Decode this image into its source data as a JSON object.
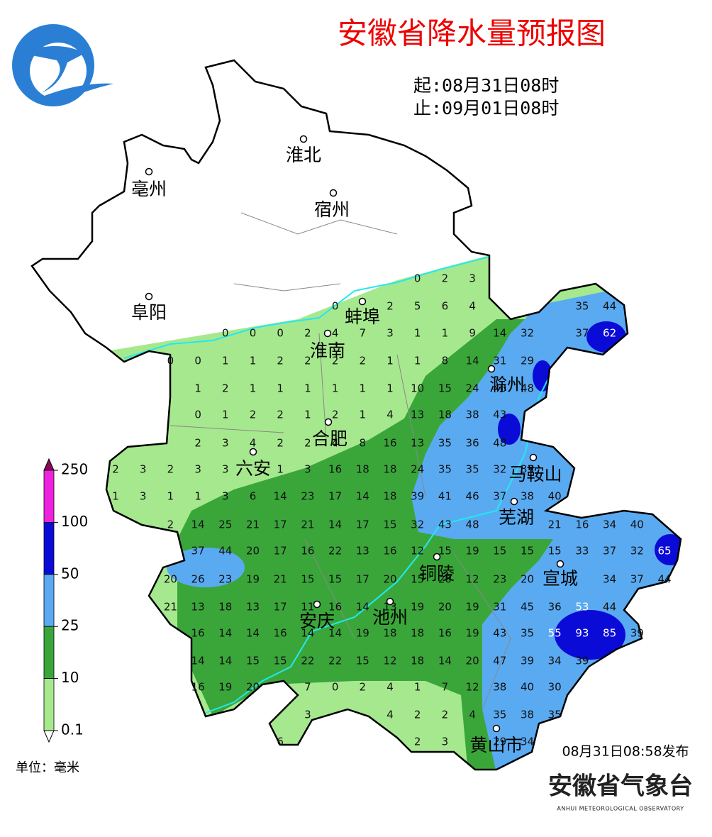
{
  "header": {
    "title": "安徽省降水量预报图",
    "start": "起:08月31日08时",
    "end": "止:09月01日08时"
  },
  "cities": [
    "淮北",
    "亳州",
    "宿州",
    "阜阳",
    "蚌埠",
    "淮南",
    "滁州",
    "合肥",
    "六安",
    "马鞍山",
    "芜湖",
    "铜陵",
    "宣城",
    "安庆",
    "池州",
    "黄山市"
  ],
  "grid": {
    "rows": [
      [
        null,
        null,
        null,
        null,
        null,
        null,
        null,
        null,
        null,
        null,
        null,
        0,
        2,
        3
      ],
      [
        null,
        null,
        null,
        null,
        null,
        null,
        null,
        null,
        0,
        null,
        2,
        5,
        6,
        4,
        null,
        null,
        null,
        35,
        44
      ],
      [
        null,
        null,
        null,
        null,
        0,
        0,
        0,
        2,
        4,
        7,
        3,
        1,
        1,
        9,
        14,
        32,
        null,
        37,
        62
      ],
      [
        null,
        null,
        0,
        0,
        1,
        1,
        2,
        2,
        2,
        2,
        1,
        1,
        8,
        14,
        31,
        29
      ],
      [
        null,
        null,
        null,
        1,
        2,
        1,
        1,
        1,
        1,
        1,
        1,
        10,
        15,
        24,
        40,
        48
      ],
      [
        null,
        null,
        null,
        0,
        1,
        2,
        2,
        1,
        2,
        1,
        4,
        13,
        18,
        38,
        43
      ],
      [
        null,
        null,
        null,
        2,
        3,
        4,
        2,
        2,
        4,
        8,
        16,
        13,
        35,
        36,
        48
      ],
      [
        2,
        3,
        2,
        3,
        3,
        null,
        1,
        3,
        16,
        18,
        18,
        24,
        35,
        35,
        32,
        33
      ],
      [
        1,
        3,
        1,
        1,
        3,
        6,
        14,
        23,
        17,
        14,
        18,
        39,
        41,
        46,
        37,
        38,
        40
      ],
      [
        null,
        null,
        2,
        14,
        25,
        21,
        17,
        21,
        14,
        17,
        15,
        32,
        43,
        48,
        null,
        null,
        21,
        16,
        34,
        40
      ],
      [
        null,
        null,
        null,
        37,
        44,
        20,
        17,
        16,
        22,
        13,
        16,
        12,
        15,
        19,
        15,
        15,
        15,
        33,
        37,
        32,
        65
      ],
      [
        null,
        null,
        20,
        26,
        23,
        19,
        21,
        15,
        15,
        17,
        20,
        15,
        20,
        12,
        23,
        20,
        null,
        null,
        34,
        37,
        44
      ],
      [
        null,
        null,
        21,
        13,
        18,
        13,
        17,
        11,
        16,
        14,
        13,
        19,
        20,
        19,
        31,
        45,
        36,
        53,
        44
      ],
      [
        null,
        null,
        null,
        16,
        14,
        14,
        16,
        14,
        14,
        19,
        18,
        18,
        16,
        19,
        43,
        35,
        55,
        93,
        85,
        39
      ],
      [
        null,
        null,
        null,
        14,
        14,
        15,
        15,
        22,
        22,
        15,
        12,
        18,
        14,
        20,
        47,
        39,
        34,
        39
      ],
      [
        null,
        null,
        null,
        16,
        19,
        20,
        null,
        7,
        0,
        2,
        4,
        1,
        7,
        12,
        38,
        40,
        30
      ],
      [
        null,
        null,
        null,
        null,
        null,
        null,
        null,
        3,
        null,
        null,
        4,
        2,
        2,
        4,
        35,
        38,
        35
      ],
      [
        null,
        null,
        null,
        null,
        null,
        null,
        6,
        null,
        null,
        null,
        null,
        2,
        3,
        null,
        29,
        34
      ]
    ]
  },
  "legend": {
    "levels": [
      250,
      100,
      50,
      25,
      10,
      0.1
    ],
    "colors": [
      "#ee22dd",
      "#0b0bd8",
      "#5aaaf2",
      "#3aa63a",
      "#a6e88e"
    ],
    "unit": "单位：毫米"
  },
  "footer": {
    "issued": "08月31日08:58发布",
    "org": "安徽省气象台",
    "org_en": "ANHUI METEOROLOGICAL OBSERVATORY"
  }
}
